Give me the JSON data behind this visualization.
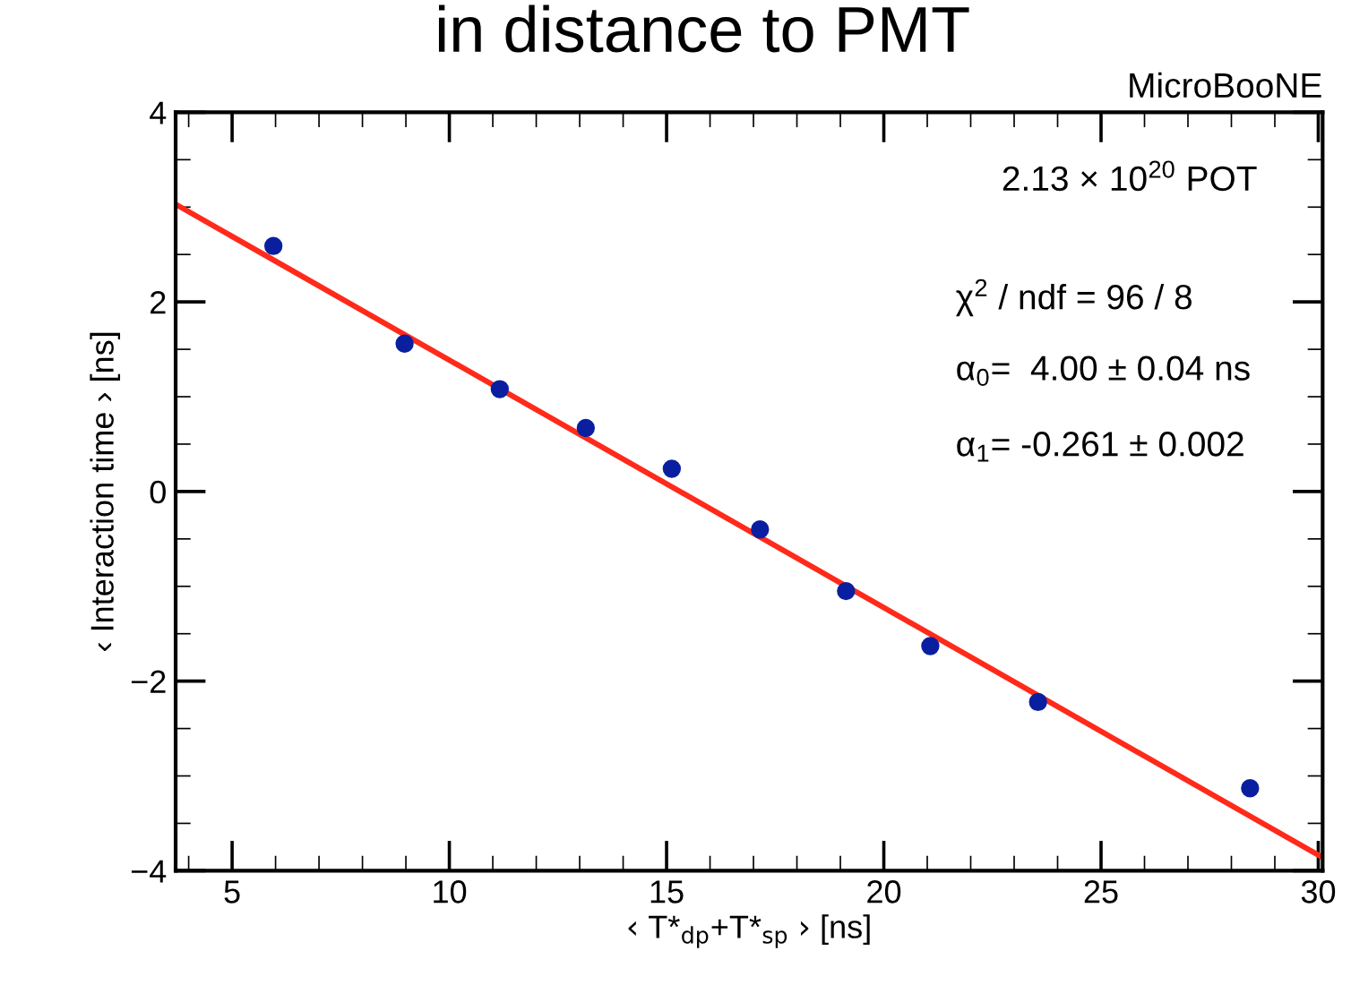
{
  "chart_data": {
    "type": "scatter",
    "title": "in distance to PMT",
    "xlabel": "‹ T*$_{dp}$+T*$_{sp}$ › [ns]",
    "ylabel": "‹ Interaction time › [ns]",
    "annotations": [
      "MicroBooNE",
      "2.13 × 10$^{20}$ POT",
      "χ$^{2}$ / ndf = 96 / 8",
      "α$_{0}$=  4.00 ± 0.04 ns",
      "α$_{1}$= -0.261 ± 0.002"
    ],
    "series": [
      {
        "type": "scatter",
        "color": "#0a1fa0",
        "marker": "circle",
        "x": [
          5.95,
          8.97,
          11.16,
          13.14,
          15.12,
          17.15,
          19.13,
          21.07,
          23.55,
          28.43
        ],
        "values": [
          2.59,
          1.56,
          1.08,
          0.67,
          0.24,
          -0.4,
          -1.05,
          -1.63,
          -2.22,
          -3.13
        ]
      },
      {
        "type": "line",
        "color": "#ff2a1a",
        "marker": "none",
        "line_style": "solid",
        "x": [
          3.7,
          30.1
        ],
        "values": [
          3.03,
          -3.86
        ]
      }
    ],
    "xlim": [
      3.7,
      30.1
    ],
    "ylim": [
      -4,
      4
    ],
    "xticks": [
      5,
      10,
      15,
      20,
      25,
      30
    ],
    "yticks": [
      {
        "value": -4,
        "label": "−4"
      },
      {
        "value": -2,
        "label": "−2"
      },
      0,
      2,
      4
    ],
    "grid": false,
    "legend": false
  }
}
